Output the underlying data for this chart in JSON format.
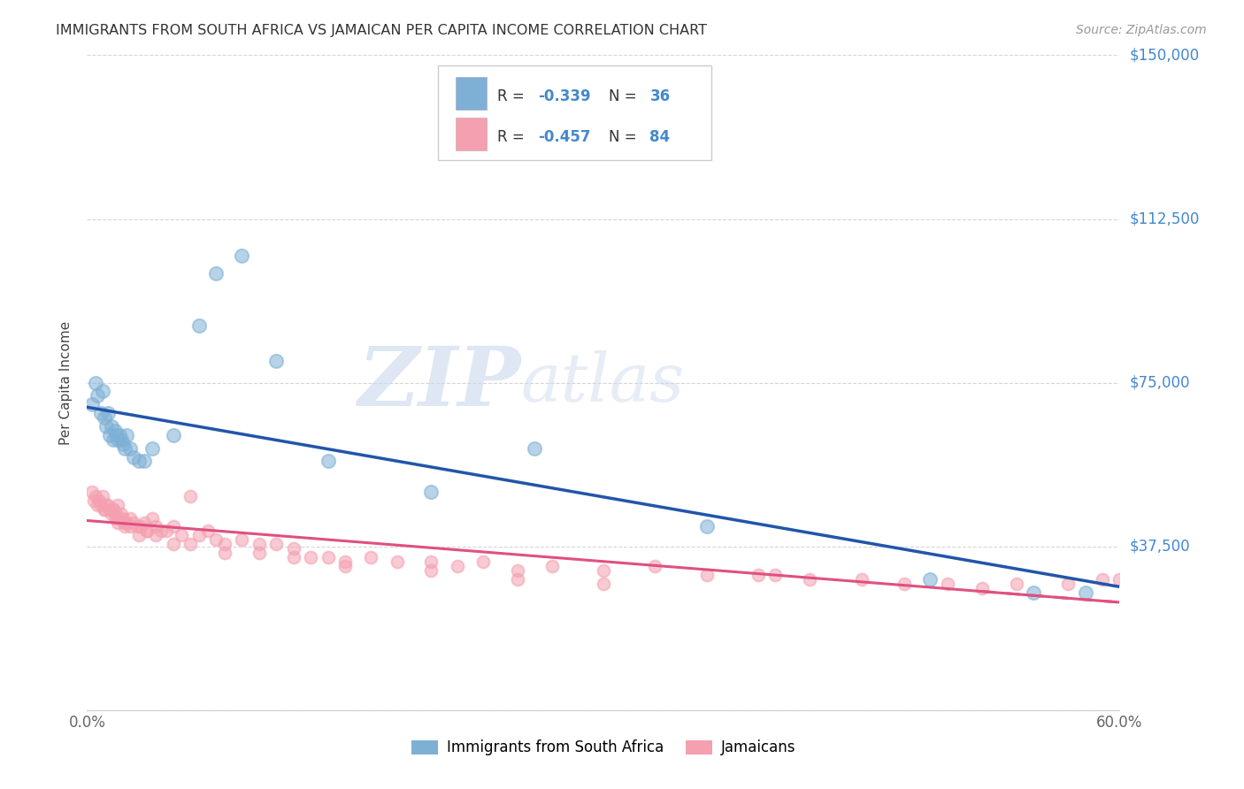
{
  "title": "IMMIGRANTS FROM SOUTH AFRICA VS JAMAICAN PER CAPITA INCOME CORRELATION CHART",
  "source": "Source: ZipAtlas.com",
  "ylabel": "Per Capita Income",
  "xlim": [
    0,
    0.6
  ],
  "ylim": [
    0,
    150000
  ],
  "yticks": [
    0,
    37500,
    75000,
    112500,
    150000
  ],
  "ytick_labels": [
    "",
    "$37,500",
    "$75,000",
    "$112,500",
    "$150,000"
  ],
  "xtick_labels": [
    "0.0%",
    "",
    "",
    "",
    "",
    "",
    "60.0%"
  ],
  "legend_label1": "Immigrants from South Africa",
  "legend_label2": "Jamaicans",
  "blue_color": "#7EB0D5",
  "pink_color": "#F4A0B0",
  "blue_line_color": "#2255AA",
  "pink_line_color": "#E05080",
  "axis_label_color": "#4488CC",
  "watermark_zip": "ZIP",
  "watermark_atlas": "atlas",
  "blue_scatter_x": [
    0.003,
    0.005,
    0.006,
    0.008,
    0.009,
    0.01,
    0.011,
    0.012,
    0.013,
    0.014,
    0.015,
    0.016,
    0.017,
    0.018,
    0.019,
    0.02,
    0.021,
    0.022,
    0.023,
    0.025,
    0.027,
    0.03,
    0.033,
    0.038,
    0.05,
    0.065,
    0.075,
    0.09,
    0.11,
    0.14,
    0.2,
    0.26,
    0.36,
    0.49,
    0.55,
    0.58
  ],
  "blue_scatter_y": [
    70000,
    75000,
    72000,
    68000,
    73000,
    67000,
    65000,
    68000,
    63000,
    65000,
    62000,
    64000,
    63000,
    62000,
    63000,
    62000,
    61000,
    60000,
    63000,
    60000,
    58000,
    57000,
    57000,
    60000,
    63000,
    88000,
    100000,
    104000,
    80000,
    57000,
    50000,
    60000,
    42000,
    30000,
    27000,
    27000
  ],
  "pink_scatter_x": [
    0.003,
    0.004,
    0.005,
    0.006,
    0.007,
    0.008,
    0.009,
    0.01,
    0.011,
    0.012,
    0.013,
    0.014,
    0.015,
    0.016,
    0.017,
    0.018,
    0.019,
    0.02,
    0.021,
    0.022,
    0.023,
    0.025,
    0.027,
    0.029,
    0.031,
    0.033,
    0.035,
    0.038,
    0.04,
    0.043,
    0.046,
    0.05,
    0.055,
    0.06,
    0.065,
    0.07,
    0.075,
    0.08,
    0.09,
    0.1,
    0.11,
    0.12,
    0.13,
    0.14,
    0.15,
    0.165,
    0.18,
    0.2,
    0.215,
    0.23,
    0.25,
    0.27,
    0.3,
    0.33,
    0.36,
    0.39,
    0.42,
    0.45,
    0.475,
    0.5,
    0.52,
    0.54,
    0.57,
    0.59,
    0.6,
    0.61,
    0.01,
    0.015,
    0.018,
    0.022,
    0.025,
    0.03,
    0.035,
    0.04,
    0.05,
    0.06,
    0.08,
    0.1,
    0.12,
    0.15,
    0.2,
    0.25,
    0.3,
    0.4
  ],
  "pink_scatter_y": [
    50000,
    48000,
    49000,
    47000,
    48000,
    47000,
    49000,
    46000,
    47000,
    47000,
    46000,
    45000,
    46000,
    45000,
    44000,
    47000,
    44000,
    45000,
    44000,
    43000,
    43000,
    44000,
    43000,
    42000,
    42000,
    43000,
    41000,
    44000,
    42000,
    41000,
    41000,
    42000,
    40000,
    49000,
    40000,
    41000,
    39000,
    38000,
    39000,
    38000,
    38000,
    37000,
    35000,
    35000,
    34000,
    35000,
    34000,
    34000,
    33000,
    34000,
    32000,
    33000,
    32000,
    33000,
    31000,
    31000,
    30000,
    30000,
    29000,
    29000,
    28000,
    29000,
    29000,
    30000,
    30000,
    31000,
    46000,
    46000,
    43000,
    42000,
    42000,
    40000,
    41000,
    40000,
    38000,
    38000,
    36000,
    36000,
    35000,
    33000,
    32000,
    30000,
    29000,
    31000
  ]
}
